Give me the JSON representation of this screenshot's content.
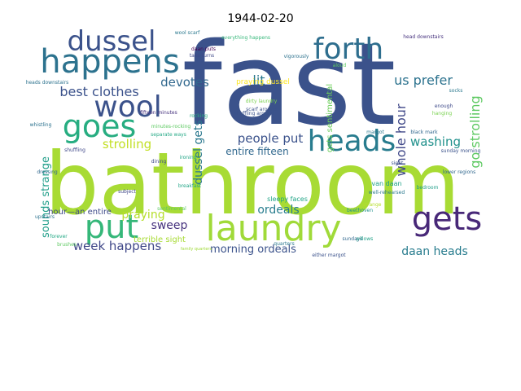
{
  "chart_data": {
    "type": "wordcloud",
    "title": "1944-02-20",
    "words": [
      {
        "text": "fast",
        "color": "#3b528b"
      },
      {
        "text": "bathroom",
        "color": "#a8db34"
      },
      {
        "text": "happens",
        "color": "#2c728e"
      },
      {
        "text": "dussel",
        "color": "#3b528b"
      },
      {
        "text": "forth",
        "color": "#2e6e8e"
      },
      {
        "text": "goes",
        "color": "#27ad81"
      },
      {
        "text": "wool",
        "color": "#3b528b"
      },
      {
        "text": "heads",
        "color": "#287c8e"
      },
      {
        "text": "put",
        "color": "#35b779"
      },
      {
        "text": "laundry",
        "color": "#a0da39"
      },
      {
        "text": "gets",
        "color": "#482878"
      },
      {
        "text": "us prefer",
        "color": "#2c728e"
      },
      {
        "text": "lit",
        "color": "#2a788e"
      },
      {
        "text": "best clothes",
        "color": "#3b528b"
      },
      {
        "text": "devotes",
        "color": "#31688e"
      },
      {
        "text": "whole hour",
        "color": "#3f4788"
      },
      {
        "text": "go strolling",
        "color": "#5ec962"
      },
      {
        "text": "people put",
        "color": "#3b528b"
      },
      {
        "text": "washing",
        "color": "#21918c"
      },
      {
        "text": "strolling",
        "color": "#c2df23"
      },
      {
        "text": "dussel gets",
        "color": "#2a788e"
      },
      {
        "text": "praying dussel",
        "color": "#fde725"
      },
      {
        "text": "entire fifteen",
        "color": "#31688e"
      },
      {
        "text": "ordeals",
        "color": "#287d8e"
      },
      {
        "text": "sounds strange",
        "color": "#1f9e89"
      },
      {
        "text": "praying",
        "color": "#b5de2b"
      },
      {
        "text": "sweep",
        "color": "#46327e"
      },
      {
        "text": "hour—an entire",
        "color": "#3e4a89"
      },
      {
        "text": "terrible sight",
        "color": "#a8db34"
      },
      {
        "text": "week happens",
        "color": "#3f4788"
      },
      {
        "text": "morning ordeals",
        "color": "#3b528b"
      },
      {
        "text": "daan heads",
        "color": "#287c8e"
      },
      {
        "text": "gets sentimental",
        "color": "#6ccd5a"
      },
      {
        "text": "van daan",
        "color": "#1fa187"
      },
      {
        "text": "everything happens",
        "color": "#35b779"
      },
      {
        "text": "sleepy faces",
        "color": "#20a486"
      },
      {
        "text": "heads downstairs",
        "color": "#2c728e"
      },
      {
        "text": "lower regions",
        "color": "#31688e"
      },
      {
        "text": "well-rehearsed",
        "color": "#2a788e"
      },
      {
        "text": "fifteen minutes",
        "color": "#46327e"
      },
      {
        "text": "shuffling",
        "color": "#3f4788"
      },
      {
        "text": "minutes-rocking",
        "color": "#5ec962"
      },
      {
        "text": "separate ways",
        "color": "#22a884"
      },
      {
        "text": "family quarters",
        "color": "#a0da39"
      },
      {
        "text": "margot",
        "color": "#2a788e"
      },
      {
        "text": "sunday morning",
        "color": "#3b528b"
      },
      {
        "text": "beethoven",
        "color": "#21918c"
      },
      {
        "text": "bedroom",
        "color": "#1f9e89"
      },
      {
        "text": "take turns",
        "color": "#3e4a89"
      },
      {
        "text": "vigorously",
        "color": "#2c728e"
      },
      {
        "text": "dirty laundry",
        "color": "#7ad151"
      },
      {
        "text": "black mark",
        "color": "#31688e"
      },
      {
        "text": "daan puts",
        "color": "#440154"
      },
      {
        "text": "scarf around",
        "color": "#3b528b"
      },
      {
        "text": "wool scarf",
        "color": "#2a788e"
      },
      {
        "text": "subject",
        "color": "#3f4788"
      },
      {
        "text": "sundays",
        "color": "#31688e"
      },
      {
        "text": "brushes",
        "color": "#5ec962"
      },
      {
        "text": "forever",
        "color": "#22a884"
      },
      {
        "text": "ironing",
        "color": "#20a486"
      },
      {
        "text": "whistling",
        "color": "#2c728e"
      },
      {
        "text": "dining",
        "color": "#3e4a89"
      },
      {
        "text": "strange",
        "color": "#b5de2b"
      },
      {
        "text": "quarters",
        "color": "#2a788e"
      },
      {
        "text": "either margot",
        "color": "#3b528b"
      },
      {
        "text": "pillows",
        "color": "#1fa187"
      },
      {
        "text": "head downstairs",
        "color": "#46327e"
      },
      {
        "text": "sentimental",
        "color": "#5ec962"
      },
      {
        "text": "dressing",
        "color": "#31688e"
      },
      {
        "text": "upstairs",
        "color": "#2c728e"
      },
      {
        "text": "shuffling around",
        "color": "#3b528b"
      },
      {
        "text": "rocking",
        "color": "#27ad81"
      },
      {
        "text": "enough",
        "color": "#3e4a89"
      },
      {
        "text": "breakfast",
        "color": "#20a486"
      },
      {
        "text": "hanging",
        "color": "#7ad151"
      },
      {
        "text": "socks",
        "color": "#2a788e"
      },
      {
        "text": "sight",
        "color": "#3b528b"
      },
      {
        "text": "aloud",
        "color": "#5ec962"
      }
    ]
  }
}
